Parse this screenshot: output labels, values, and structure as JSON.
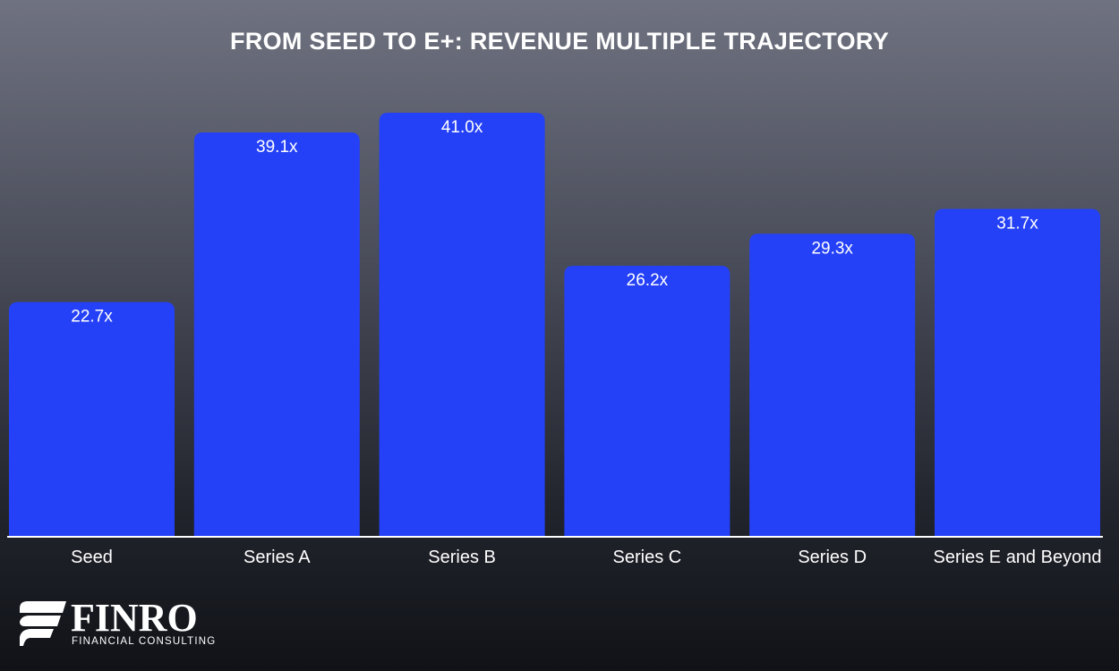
{
  "chart_data": {
    "type": "bar",
    "title": "FROM SEED TO E+: REVENUE MULTIPLE TRAJECTORY",
    "categories": [
      "Seed",
      "Series A",
      "Series B",
      "Series C",
      "Series D",
      "Series E and Beyond"
    ],
    "values": [
      22.7,
      39.1,
      41.0,
      26.2,
      29.3,
      31.7
    ],
    "value_labels": [
      "22.7x",
      "39.1x",
      "41.0x",
      "26.2x",
      "29.3x",
      "31.7x"
    ],
    "xlabel": "",
    "ylabel": "",
    "ylim": [
      0,
      41.0
    ],
    "grid": false,
    "legend": "none",
    "colors": {
      "bar": "#2541f7",
      "axis": "#ffffff",
      "text": "#ffffff"
    }
  },
  "branding": {
    "logo_word": "FINRO",
    "logo_sub": "FINANCIAL CONSULTING"
  }
}
